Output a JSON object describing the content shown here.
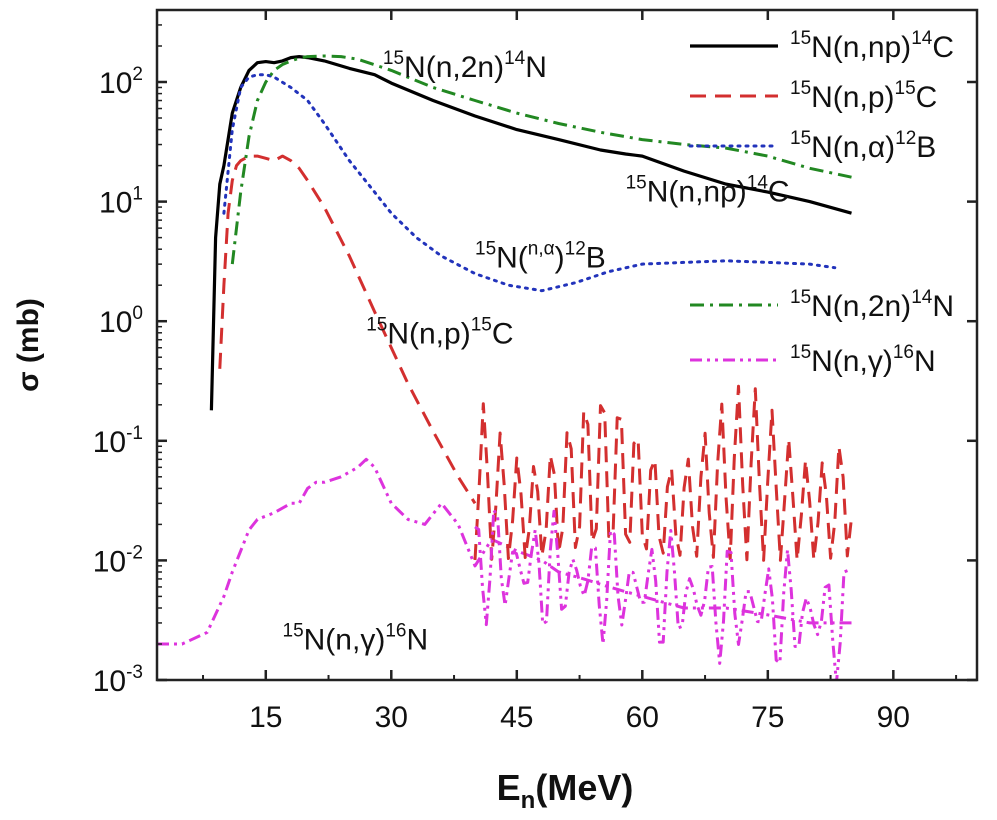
{
  "chart_data": {
    "type": "line",
    "title": "",
    "xlabel": "E",
    "xlabel_sub": "n",
    "xlabel_unit": "(MeV)",
    "ylabel": "σ (mb)",
    "xlim": [
      2,
      100
    ],
    "ylim": [
      0.001,
      400
    ],
    "yscale": "log",
    "x_ticks": [
      "15",
      "30",
      "45",
      "60",
      "75",
      "90"
    ],
    "y_ticks": [
      {
        "base": "10",
        "exp": "-3"
      },
      {
        "base": "10",
        "exp": "-2"
      },
      {
        "base": "10",
        "exp": "-1"
      },
      {
        "base": "10",
        "exp": "0"
      },
      {
        "base": "10",
        "exp": "1"
      },
      {
        "base": "10",
        "exp": "2"
      }
    ],
    "grid": false,
    "legend_position": "top-right",
    "series": [
      {
        "id": "np",
        "name_parts": [
          "",
          "15",
          "N(n,np)",
          "14",
          "C"
        ],
        "color": "#000000",
        "dash": "solid",
        "x": [
          8.5,
          9,
          9.5,
          10,
          11,
          12,
          13,
          14,
          15,
          16,
          17,
          18,
          19,
          20,
          22,
          25,
          28,
          30,
          35,
          40,
          45,
          50,
          55,
          58,
          60,
          65,
          70,
          75,
          80,
          85
        ],
        "y": [
          0.18,
          5,
          14,
          20,
          55,
          90,
          125,
          145,
          148,
          145,
          150,
          160,
          163,
          160,
          150,
          130,
          115,
          98,
          70,
          52,
          40,
          33,
          27,
          25,
          24,
          18,
          14,
          12,
          10,
          8
        ]
      },
      {
        "id": "p",
        "name_parts": [
          "",
          "15",
          "N(n,p)",
          "15",
          "C"
        ],
        "color": "#d32f2f",
        "dash": "dashed",
        "x": [
          9.5,
          10,
          10.5,
          11,
          11.5,
          12,
          13,
          14,
          15,
          16,
          17,
          18,
          19,
          20,
          22,
          25,
          28,
          30,
          32,
          35,
          38,
          40
        ],
        "y": [
          0.4,
          2,
          8,
          15,
          20,
          22,
          24,
          24,
          23,
          22,
          24,
          22,
          19,
          15,
          9,
          3.5,
          1.2,
          0.6,
          0.3,
          0.12,
          0.05,
          0.03
        ]
      },
      {
        "id": "alpha",
        "name_parts": [
          "",
          "15",
          "N(n,α)",
          "12",
          "B"
        ],
        "color": "#2233bb",
        "dash": "dotted",
        "x": [
          10,
          11,
          12,
          13,
          14,
          15,
          16,
          18,
          20,
          22,
          25,
          28,
          30,
          33,
          36,
          40,
          44,
          48,
          52,
          56,
          60,
          65,
          70,
          75,
          80,
          83
        ],
        "y": [
          8,
          40,
          90,
          110,
          115,
          115,
          110,
          90,
          70,
          45,
          22,
          12,
          8,
          5,
          3.5,
          2.5,
          2,
          1.8,
          2.1,
          2.6,
          3,
          3.1,
          3.2,
          3.1,
          3,
          2.8
        ]
      },
      {
        "id": "2n",
        "name_parts": [
          "",
          "15",
          "N(n,2n)",
          "14",
          "N"
        ],
        "color": "#228822",
        "dash": "dashdot",
        "x": [
          11,
          12,
          13,
          14,
          15,
          16,
          17,
          18,
          19,
          20,
          22,
          24,
          26,
          30,
          35,
          40,
          45,
          50,
          55,
          60,
          65,
          70,
          75,
          80,
          85
        ],
        "y": [
          3,
          12,
          35,
          70,
          100,
          125,
          140,
          150,
          158,
          163,
          165,
          163,
          155,
          125,
          90,
          70,
          55,
          45,
          38,
          33,
          30,
          28,
          24,
          19,
          16
        ]
      },
      {
        "id": "gamma",
        "name_parts": [
          "",
          "15",
          "N(n,γ)",
          "16",
          "N"
        ],
        "color": "#dd33dd",
        "dash": "dashdotdot",
        "x": [
          2,
          5,
          8,
          10,
          11,
          12,
          13,
          14,
          16,
          18,
          19,
          20,
          21,
          22,
          24,
          26,
          27,
          28,
          30,
          32,
          34,
          36,
          38,
          40,
          42,
          45,
          48,
          50,
          53,
          56,
          60,
          65,
          70,
          75,
          80,
          85
        ],
        "y": [
          0.002,
          0.002,
          0.0025,
          0.005,
          0.008,
          0.012,
          0.018,
          0.022,
          0.025,
          0.03,
          0.03,
          0.04,
          0.045,
          0.045,
          0.05,
          0.06,
          0.07,
          0.06,
          0.03,
          0.022,
          0.02,
          0.03,
          0.02,
          0.009,
          0.015,
          0.012,
          0.01,
          0.008,
          0.007,
          0.006,
          0.005,
          0.004,
          0.004,
          0.0035,
          0.003,
          0.003
        ]
      },
      {
        "id": "p_resonances",
        "color": "#d32f2f",
        "dash": "dashed",
        "x_range": [
          40,
          85
        ],
        "oscillation_y_range": [
          0.01,
          0.3
        ]
      }
    ],
    "annotations": [
      {
        "series": "2n",
        "parts": [
          "",
          "15",
          "N(n,2n)",
          "14",
          "N"
        ],
        "x": 29,
        "y": 110
      },
      {
        "series": "np",
        "parts": [
          "",
          "15",
          "N(n,np)",
          "14",
          "C"
        ],
        "x": 58,
        "y": 10
      },
      {
        "series": "alpha",
        "parts": [
          "",
          "15",
          "N(",
          "n,α",
          ")",
          "12",
          "B"
        ],
        "x": 40,
        "y": 2.8
      },
      {
        "series": "p",
        "parts": [
          "",
          "15",
          "N(n,p)",
          "15",
          "C"
        ],
        "x": 27,
        "y": 0.65
      },
      {
        "series": "gamma",
        "parts": [
          "",
          "15",
          "N(n,γ)",
          "16",
          "N"
        ],
        "x": 17,
        "y": 0.0018
      }
    ]
  }
}
